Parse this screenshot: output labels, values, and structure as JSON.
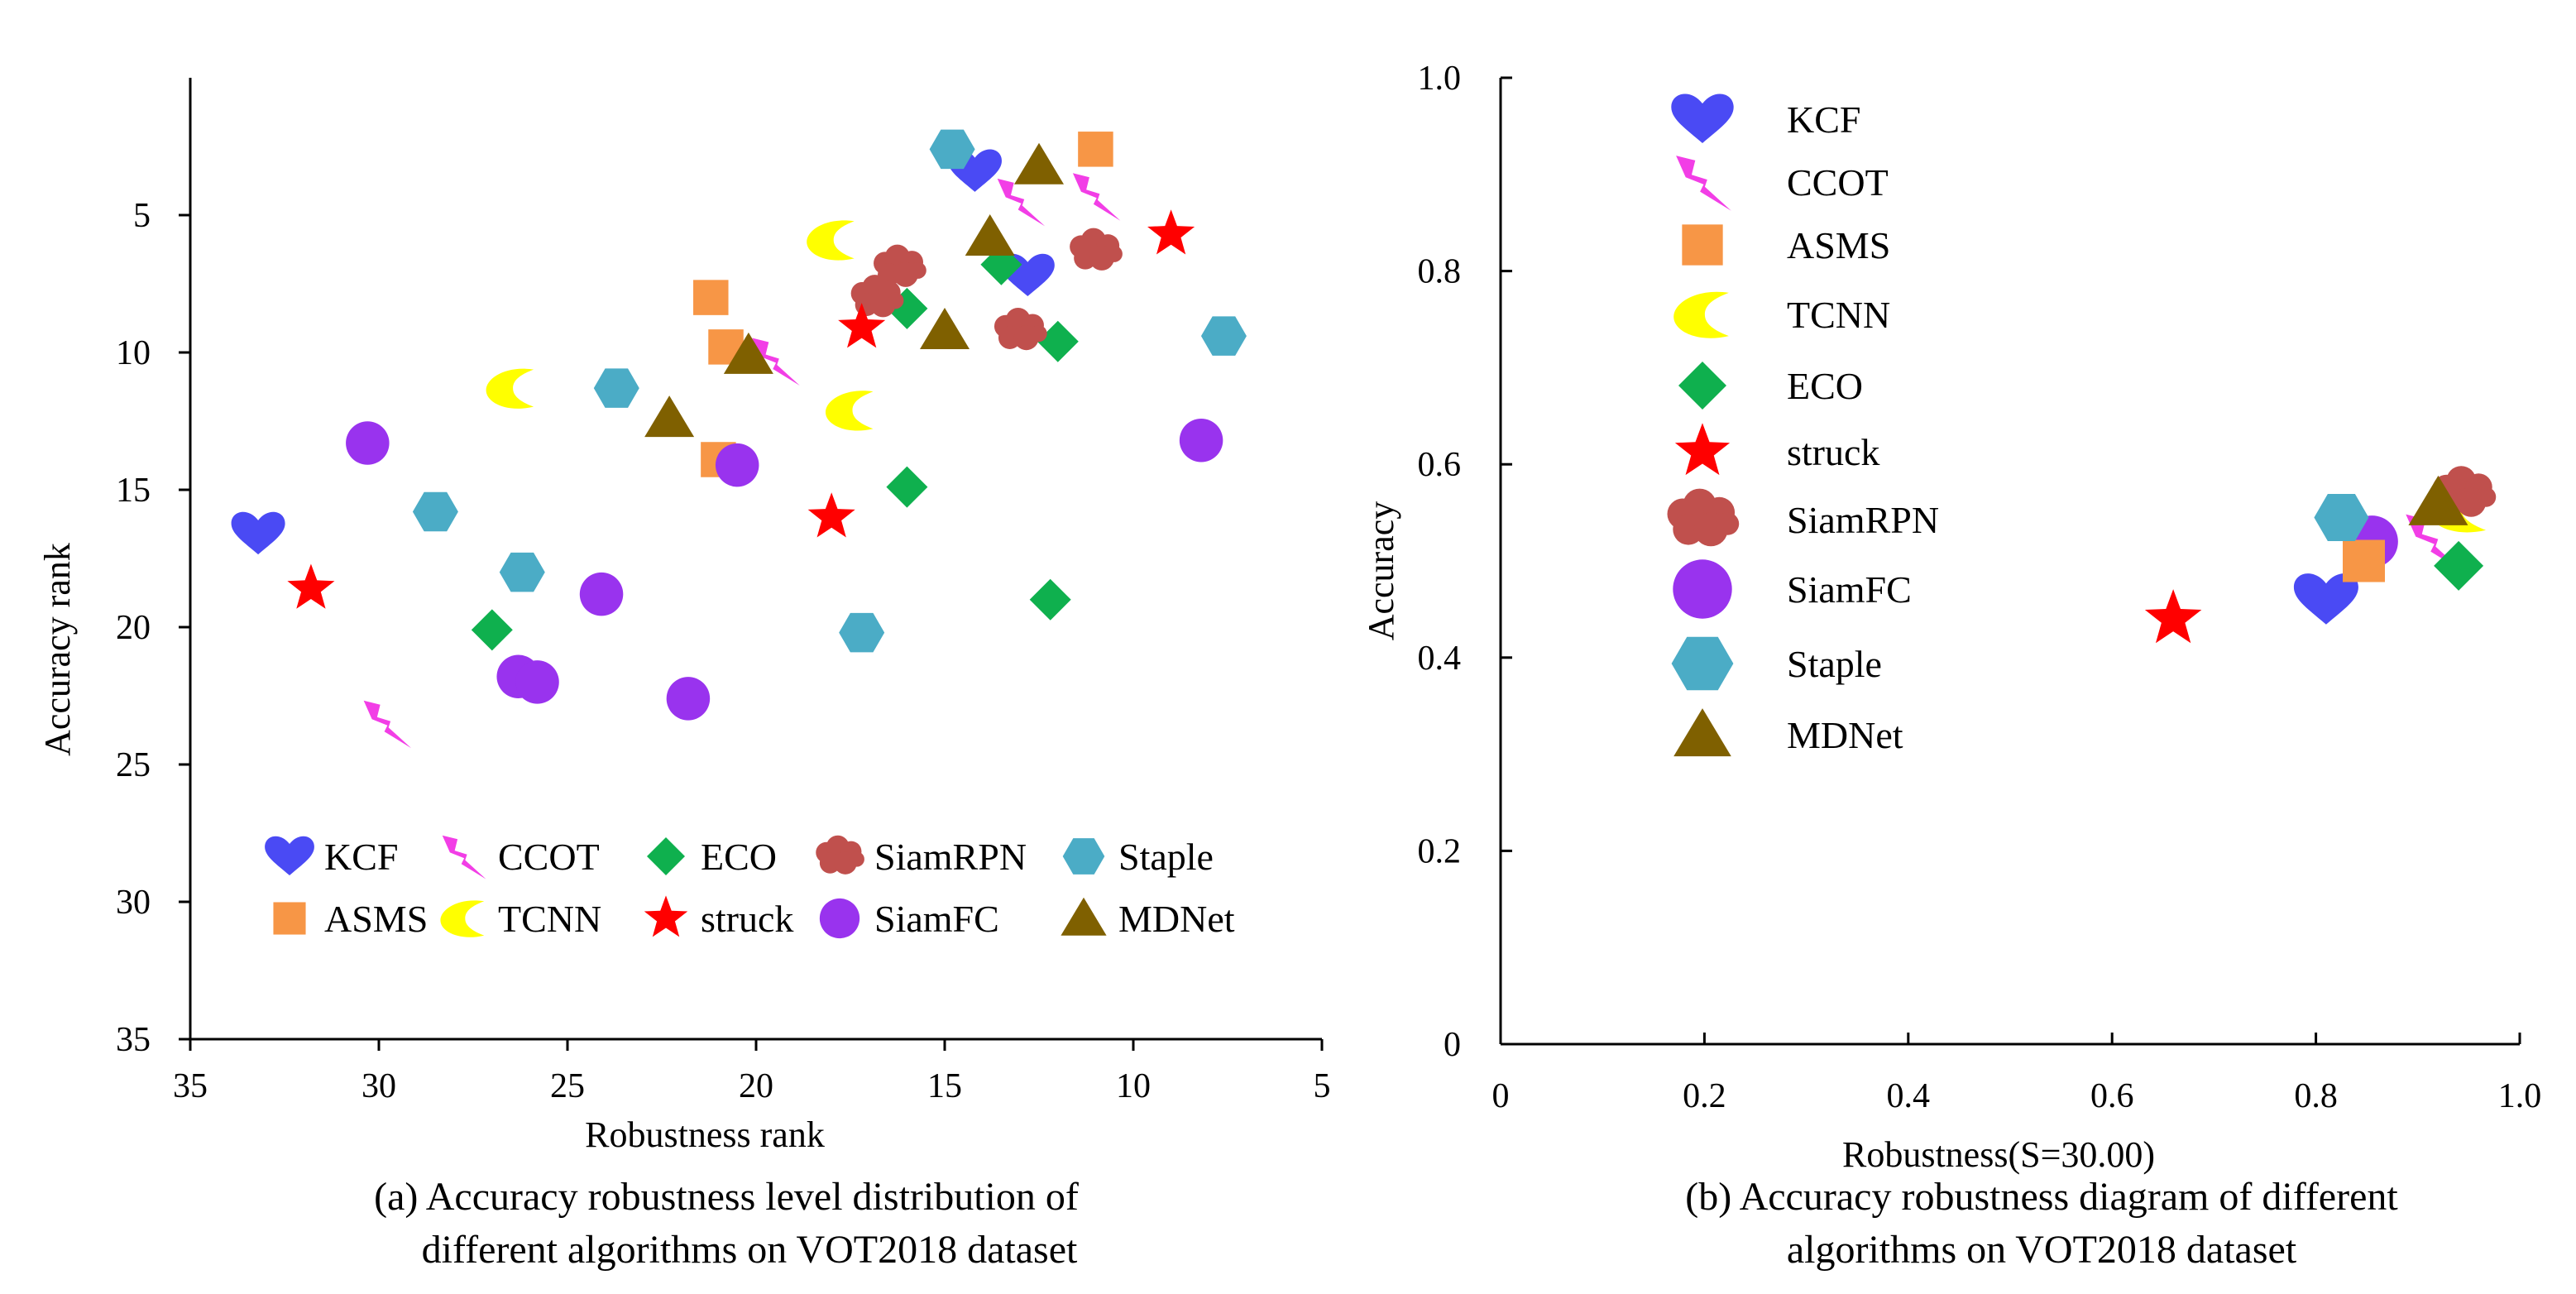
{
  "chart_data": [
    {
      "type": "scatter",
      "panel": "a",
      "caption_line1": "(a) Accuracy robustness level distribution of",
      "caption_line2": "different algorithms on VOT2018 dataset",
      "xlabel": "Robustness rank",
      "ylabel": "Accuracy rank",
      "xlim": [
        35,
        5
      ],
      "ylim": [
        35,
        0
      ],
      "xticks": [
        "35",
        "30",
        "25",
        "20",
        "15",
        "10",
        "5"
      ],
      "yticks": [
        "5",
        "10",
        "15",
        "20",
        "25",
        "30",
        "35"
      ],
      "legend_placement": "bottom",
      "series": [
        {
          "name": "KCF",
          "marker": "heart",
          "color": "#4a4af4",
          "points": [
            [
              33.2,
              16.6
            ],
            [
              14.2,
              3.4
            ],
            [
              12.8,
              7.2
            ]
          ]
        },
        {
          "name": "CCOT",
          "marker": "bolt",
          "color": "#f23ee6",
          "points": [
            [
              29.8,
              23.5
            ],
            [
              19.5,
              10.3
            ],
            [
              13.0,
              4.5
            ],
            [
              11.0,
              4.3
            ]
          ]
        },
        {
          "name": "ECO",
          "marker": "diamond",
          "color": "#0fb04e",
          "points": [
            [
              27.0,
              20.1
            ],
            [
              16.0,
              8.4
            ],
            [
              13.5,
              6.8
            ],
            [
              12.0,
              9.6
            ],
            [
              16.0,
              14.9
            ],
            [
              12.2,
              19.0
            ]
          ]
        },
        {
          "name": "SiamRPN",
          "marker": "cloud",
          "color": "#c0504d",
          "points": [
            [
              16.2,
              6.9
            ],
            [
              16.8,
              8.0
            ],
            [
              13.0,
              9.2
            ],
            [
              11.0,
              6.3
            ]
          ]
        },
        {
          "name": "Staple",
          "marker": "hexagon",
          "color": "#4bacc6",
          "points": [
            [
              14.8,
              2.6
            ],
            [
              7.6,
              9.4
            ],
            [
              23.7,
              11.3
            ],
            [
              28.5,
              15.8
            ],
            [
              26.2,
              18.0
            ],
            [
              17.2,
              20.2
            ]
          ]
        },
        {
          "name": "ASMS",
          "marker": "square",
          "color": "#f79646",
          "points": [
            [
              21.2,
              8.0
            ],
            [
              20.8,
              9.8
            ],
            [
              11.0,
              2.6
            ],
            [
              21.0,
              13.9
            ]
          ]
        },
        {
          "name": "TCNN",
          "marker": "crescent",
          "color": "#ffff00",
          "points": [
            [
              18.0,
              5.9
            ],
            [
              26.5,
              11.3
            ],
            [
              17.5,
              12.1
            ]
          ]
        },
        {
          "name": "struck",
          "marker": "star",
          "color": "#ff0000",
          "points": [
            [
              31.8,
              18.6
            ],
            [
              17.2,
              9.1
            ],
            [
              18.0,
              16.0
            ],
            [
              9.0,
              5.7
            ]
          ]
        },
        {
          "name": "SiamFC",
          "marker": "circle",
          "color": "#9933ee",
          "points": [
            [
              30.3,
              13.3
            ],
            [
              20.5,
              14.1
            ],
            [
              24.1,
              18.8
            ],
            [
              26.3,
              21.8
            ],
            [
              25.8,
              22.0
            ],
            [
              21.8,
              22.6
            ],
            [
              8.2,
              13.2
            ]
          ]
        },
        {
          "name": "MDNet",
          "marker": "triangle",
          "color": "#7f6000",
          "points": [
            [
              12.5,
              3.2
            ],
            [
              13.8,
              5.8
            ],
            [
              15.0,
              9.2
            ],
            [
              20.2,
              10.1
            ],
            [
              22.3,
              12.4
            ]
          ]
        }
      ]
    },
    {
      "type": "scatter",
      "panel": "b",
      "caption_line1": "(b) Accuracy robustness diagram of different",
      "caption_line2": "algorithms on VOT2018 dataset",
      "xlabel": "Robustness(S=30.00)",
      "ylabel": "Accuracy",
      "xlim": [
        0,
        1.0
      ],
      "ylim": [
        0,
        1.0
      ],
      "xticks": [
        "0",
        "0.2",
        "0.4",
        "0.6",
        "0.8",
        "1.0"
      ],
      "yticks": [
        "0",
        "0.2",
        "0.4",
        "0.6",
        "0.8",
        "1.0"
      ],
      "legend_placement": "top-left",
      "series": [
        {
          "name": "KCF",
          "marker": "heart",
          "color": "#4a4af4",
          "points": [
            [
              0.81,
              0.46
            ]
          ]
        },
        {
          "name": "CCOT",
          "marker": "bolt",
          "color": "#f23ee6",
          "points": [
            [
              0.915,
              0.52
            ]
          ]
        },
        {
          "name": "ASMS",
          "marker": "square",
          "color": "#f79646",
          "points": [
            [
              0.847,
              0.5
            ]
          ]
        },
        {
          "name": "TCNN",
          "marker": "crescent",
          "color": "#ffff00",
          "points": [
            [
              0.94,
              0.555
            ]
          ]
        },
        {
          "name": "ECO",
          "marker": "diamond",
          "color": "#0fb04e",
          "points": [
            [
              0.94,
              0.495
            ]
          ]
        },
        {
          "name": "struck",
          "marker": "star",
          "color": "#ff0000",
          "points": [
            [
              0.66,
              0.44
            ]
          ]
        },
        {
          "name": "SiamRPN",
          "marker": "cloud",
          "color": "#c0504d",
          "points": [
            [
              0.945,
              0.57
            ]
          ]
        },
        {
          "name": "SiamFC",
          "marker": "circle",
          "color": "#9933ee",
          "points": [
            [
              0.855,
              0.52
            ]
          ]
        },
        {
          "name": "Staple",
          "marker": "hexagon",
          "color": "#4bacc6",
          "points": [
            [
              0.825,
              0.545
            ]
          ]
        },
        {
          "name": "MDNet",
          "marker": "triangle",
          "color": "#7f6000",
          "points": [
            [
              0.92,
              0.56
            ]
          ]
        }
      ]
    }
  ]
}
